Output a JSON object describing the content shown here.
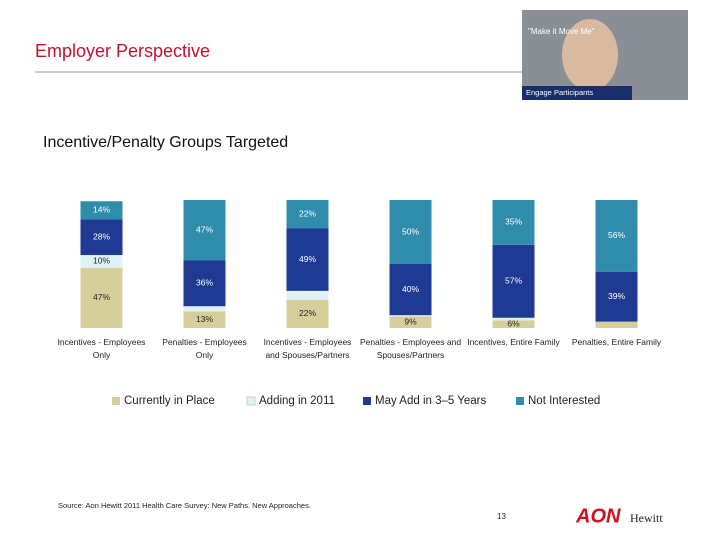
{
  "header": {
    "title": "Employer Perspective"
  },
  "photo": {
    "caption": "\"Make it Move Me\"",
    "banner": "Engage Participants"
  },
  "chart_data": {
    "type": "stacked_bar",
    "title": "Incentive/Penalty Groups Targeted",
    "categories": [
      "Incentives - Employees Only",
      "Penalties - Employees Only",
      "Incentives - Employees and Spouses/Partners",
      "Penalties - Employees and Spouses/Partners",
      "Incentives, Entire Family",
      "Penalties, Entire Family"
    ],
    "ylim": [
      0,
      100
    ],
    "series": [
      {
        "name": "Currently in Place",
        "color": "#d6cf9c",
        "values": [
          47,
          13,
          22,
          9,
          6,
          5
        ],
        "value_labels": [
          "47%",
          "13%",
          "22%",
          "9%",
          "6%",
          null
        ]
      },
      {
        "name": "Adding in 2011",
        "color": "#dff3f7",
        "values": [
          10,
          4,
          7,
          1,
          2,
          0
        ],
        "value_labels": [
          "10%",
          null,
          null,
          null,
          null,
          null
        ]
      },
      {
        "name": "May Add in 3–5 Years",
        "color": "#1f3a93",
        "values": [
          28,
          36,
          49,
          40,
          57,
          39
        ],
        "value_labels": [
          "28%",
          "36%",
          "49%",
          "40%",
          "57%",
          "39%"
        ]
      },
      {
        "name": "Not Interested",
        "color": "#2f8cab",
        "values": [
          14,
          47,
          22,
          50,
          35,
          56
        ],
        "value_labels": [
          "14%",
          "47%",
          "22%",
          "50%",
          "35%",
          "56%"
        ]
      }
    ]
  },
  "footer": {
    "source": "Source: Aon Hewitt 2011 Health Care Survey: New Paths. New Approaches.",
    "page": "13",
    "logo": "AON",
    "logo_sub": "Hewitt"
  }
}
